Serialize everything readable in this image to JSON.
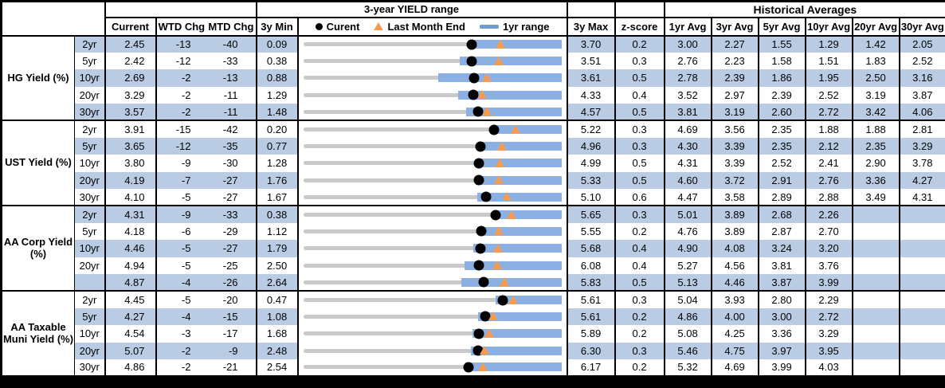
{
  "header": {
    "chart_group_title": "3-year YIELD range",
    "hist_group_title": "Historical Averages",
    "col_current": "Current",
    "col_wtd_chg": "WTD Chg",
    "col_mtd_chg": "MTD Chg",
    "col_3y_min": "3y Min",
    "col_3y_max": "3y Max",
    "col_z_score": "z-score",
    "avg_cols": [
      "1yr Avg",
      "3yr Avg",
      "5yr Avg",
      "10yr Avg",
      "20yr Avg",
      "30yr Avg"
    ],
    "legend": {
      "current_label": "Curent",
      "last_month_label": "Last Month End",
      "range_label": "1yr range"
    }
  },
  "colors": {
    "row_shade": "#b9cce4",
    "range_bar": "#8db0e2",
    "range_track": "#c9c9c9",
    "current_dot": "#000000",
    "last_month_marker": "#f79b52",
    "legend_dash": "#6d9ed3",
    "border": "#000000"
  },
  "chart_data": {
    "type": "table",
    "title": "3-year YIELD range",
    "note": "Each row shows a 3-year min-max track (gray), a 1yr range bar (blue), current yield (black dot) and last month end yield (orange triangle). last_month_end = current - mtd_chg/100. yr1_low/yr1_high estimated from bar positions.",
    "legend": [
      {
        "marker": "dot",
        "label": "Curent"
      },
      {
        "marker": "triangle",
        "label": "Last Month End"
      },
      {
        "marker": "bar",
        "label": "1yr range"
      }
    ],
    "groups": [
      {
        "label": "HG Yield (%)",
        "rows": [
          {
            "tenor": "2yr",
            "current": "2.45",
            "wtd_chg": "-13",
            "mtd_chg": "-40",
            "min_3y": "0.09",
            "max_3y": "3.70",
            "z_score": "0.2",
            "avgs": [
              "3.00",
              "2.27",
              "1.55",
              "1.29",
              "1.42",
              "2.05"
            ],
            "range": {
              "min": 0.09,
              "max": 3.7,
              "yr1_low": 2.4,
              "yr1_high": 3.7,
              "current": 2.45,
              "last_month_end": 2.85
            }
          },
          {
            "tenor": "5yr",
            "current": "2.42",
            "wtd_chg": "-12",
            "mtd_chg": "-33",
            "min_3y": "0.38",
            "max_3y": "3.51",
            "z_score": "0.3",
            "avgs": [
              "2.76",
              "2.23",
              "1.58",
              "1.51",
              "1.83",
              "2.52"
            ],
            "range": {
              "min": 0.38,
              "max": 3.51,
              "yr1_low": 2.28,
              "yr1_high": 3.51,
              "current": 2.42,
              "last_month_end": 2.75
            }
          },
          {
            "tenor": "10yr",
            "current": "2.69",
            "wtd_chg": "-2",
            "mtd_chg": "-13",
            "min_3y": "0.88",
            "max_3y": "3.61",
            "z_score": "0.5",
            "avgs": [
              "2.78",
              "2.39",
              "1.86",
              "1.95",
              "2.50",
              "3.16"
            ],
            "range": {
              "min": 0.88,
              "max": 3.61,
              "yr1_low": 2.31,
              "yr1_high": 3.61,
              "current": 2.69,
              "last_month_end": 2.82
            }
          },
          {
            "tenor": "20yr",
            "current": "3.29",
            "wtd_chg": "-2",
            "mtd_chg": "-11",
            "min_3y": "1.29",
            "max_3y": "4.33",
            "z_score": "0.4",
            "avgs": [
              "3.52",
              "2.97",
              "2.39",
              "2.52",
              "3.19",
              "3.87"
            ],
            "range": {
              "min": 1.29,
              "max": 4.33,
              "yr1_low": 3.11,
              "yr1_high": 4.33,
              "current": 3.29,
              "last_month_end": 3.4
            }
          },
          {
            "tenor": "30yr",
            "current": "3.57",
            "wtd_chg": "-2",
            "mtd_chg": "-11",
            "min_3y": "1.48",
            "max_3y": "4.57",
            "z_score": "0.5",
            "avgs": [
              "3.81",
              "3.19",
              "2.60",
              "2.72",
              "3.42",
              "4.06"
            ],
            "range": {
              "min": 1.48,
              "max": 4.57,
              "yr1_low": 3.43,
              "yr1_high": 4.57,
              "current": 3.57,
              "last_month_end": 3.68
            }
          }
        ]
      },
      {
        "label": "UST Yield (%)",
        "rows": [
          {
            "tenor": "2yr",
            "current": "3.91",
            "wtd_chg": "-15",
            "mtd_chg": "-42",
            "min_3y": "0.20",
            "max_3y": "5.22",
            "z_score": "0.3",
            "avgs": [
              "4.69",
              "3.56",
              "2.35",
              "1.88",
              "1.88",
              "2.81"
            ],
            "range": {
              "min": 0.2,
              "max": 5.22,
              "yr1_low": 3.88,
              "yr1_high": 5.22,
              "current": 3.91,
              "last_month_end": 4.33
            }
          },
          {
            "tenor": "5yr",
            "current": "3.65",
            "wtd_chg": "-12",
            "mtd_chg": "-35",
            "min_3y": "0.77",
            "max_3y": "4.96",
            "z_score": "0.3",
            "avgs": [
              "4.30",
              "3.39",
              "2.35",
              "2.12",
              "2.35",
              "3.29"
            ],
            "range": {
              "min": 0.77,
              "max": 4.96,
              "yr1_low": 3.62,
              "yr1_high": 4.96,
              "current": 3.65,
              "last_month_end": 4.0
            }
          },
          {
            "tenor": "10yr",
            "current": "3.80",
            "wtd_chg": "-9",
            "mtd_chg": "-30",
            "min_3y": "1.28",
            "max_3y": "4.99",
            "z_score": "0.5",
            "avgs": [
              "4.31",
              "3.39",
              "2.52",
              "2.41",
              "2.90",
              "3.78"
            ],
            "range": {
              "min": 1.28,
              "max": 4.99,
              "yr1_low": 3.78,
              "yr1_high": 4.99,
              "current": 3.8,
              "last_month_end": 4.1
            }
          },
          {
            "tenor": "20yr",
            "current": "4.19",
            "wtd_chg": "-7",
            "mtd_chg": "-27",
            "min_3y": "1.76",
            "max_3y": "5.33",
            "z_score": "0.5",
            "avgs": [
              "4.60",
              "3.72",
              "2.91",
              "2.76",
              "3.36",
              "4.27"
            ],
            "range": {
              "min": 1.76,
              "max": 5.33,
              "yr1_low": 4.14,
              "yr1_high": 5.33,
              "current": 4.19,
              "last_month_end": 4.46
            }
          },
          {
            "tenor": "30yr",
            "current": "4.10",
            "wtd_chg": "-5",
            "mtd_chg": "-27",
            "min_3y": "1.67",
            "max_3y": "5.10",
            "z_score": "0.6",
            "avgs": [
              "4.47",
              "3.58",
              "2.89",
              "2.88",
              "3.49",
              "4.31"
            ],
            "range": {
              "min": 1.67,
              "max": 5.1,
              "yr1_low": 3.98,
              "yr1_high": 5.1,
              "current": 4.1,
              "last_month_end": 4.37
            }
          }
        ]
      },
      {
        "label": "AA Corp Yield (%)",
        "rows": [
          {
            "tenor": "2yr",
            "current": "4.31",
            "wtd_chg": "-9",
            "mtd_chg": "-33",
            "min_3y": "0.38",
            "max_3y": "5.65",
            "z_score": "0.3",
            "avgs": [
              "5.01",
              "3.89",
              "2.68",
              "2.26",
              "",
              ""
            ],
            "range": {
              "min": 0.38,
              "max": 5.65,
              "yr1_low": 4.28,
              "yr1_high": 5.65,
              "current": 4.31,
              "last_month_end": 4.64
            }
          },
          {
            "tenor": "5yr",
            "current": "4.18",
            "wtd_chg": "-6",
            "mtd_chg": "-29",
            "min_3y": "1.12",
            "max_3y": "5.55",
            "z_score": "0.2",
            "avgs": [
              "4.76",
              "3.89",
              "2.87",
              "2.70",
              "",
              ""
            ],
            "range": {
              "min": 1.12,
              "max": 5.55,
              "yr1_low": 4.15,
              "yr1_high": 5.55,
              "current": 4.18,
              "last_month_end": 4.47
            }
          },
          {
            "tenor": "10yr",
            "current": "4.46",
            "wtd_chg": "-5",
            "mtd_chg": "-27",
            "min_3y": "1.79",
            "max_3y": "5.68",
            "z_score": "0.4",
            "avgs": [
              "4.90",
              "4.08",
              "3.24",
              "3.20",
              "",
              ""
            ],
            "range": {
              "min": 1.79,
              "max": 5.68,
              "yr1_low": 4.35,
              "yr1_high": 5.68,
              "current": 4.46,
              "last_month_end": 4.73
            }
          },
          {
            "tenor": "20yr",
            "current": "4.94",
            "wtd_chg": "-5",
            "mtd_chg": "-25",
            "min_3y": "2.50",
            "max_3y": "6.08",
            "z_score": "0.4",
            "avgs": [
              "5.27",
              "4.56",
              "3.81",
              "3.76",
              "",
              ""
            ],
            "range": {
              "min": 2.5,
              "max": 6.08,
              "yr1_low": 4.74,
              "yr1_high": 6.08,
              "current": 4.94,
              "last_month_end": 5.19
            }
          },
          {
            "tenor": "",
            "current": "4.87",
            "wtd_chg": "-4",
            "mtd_chg": "-26",
            "min_3y": "2.64",
            "max_3y": "5.83",
            "z_score": "0.5",
            "avgs": [
              "5.13",
              "4.46",
              "3.87",
              "3.99",
              "",
              ""
            ],
            "range": {
              "min": 2.64,
              "max": 5.83,
              "yr1_low": 4.59,
              "yr1_high": 5.83,
              "current": 4.87,
              "last_month_end": 5.13
            }
          }
        ]
      },
      {
        "label": "AA Taxable Muni Yield (%)",
        "rows": [
          {
            "tenor": "2yr",
            "current": "4.45",
            "wtd_chg": "-5",
            "mtd_chg": "-20",
            "min_3y": "0.47",
            "max_3y": "5.61",
            "z_score": "0.3",
            "avgs": [
              "5.04",
              "3.93",
              "2.80",
              "2.29",
              "",
              ""
            ],
            "range": {
              "min": 0.47,
              "max": 5.61,
              "yr1_low": 4.3,
              "yr1_high": 5.61,
              "current": 4.45,
              "last_month_end": 4.65
            }
          },
          {
            "tenor": "5yr",
            "current": "4.27",
            "wtd_chg": "-4",
            "mtd_chg": "-15",
            "min_3y": "1.08",
            "max_3y": "5.61",
            "z_score": "0.2",
            "avgs": [
              "4.86",
              "4.00",
              "3.00",
              "2.72",
              "",
              ""
            ],
            "range": {
              "min": 1.08,
              "max": 5.61,
              "yr1_low": 4.15,
              "yr1_high": 5.61,
              "current": 4.27,
              "last_month_end": 4.42
            }
          },
          {
            "tenor": "10yr",
            "current": "4.54",
            "wtd_chg": "-3",
            "mtd_chg": "-17",
            "min_3y": "1.68",
            "max_3y": "5.89",
            "z_score": "0.2",
            "avgs": [
              "5.08",
              "4.25",
              "3.36",
              "3.29",
              "",
              ""
            ],
            "range": {
              "min": 1.68,
              "max": 5.89,
              "yr1_low": 4.44,
              "yr1_high": 5.89,
              "current": 4.54,
              "last_month_end": 4.71
            }
          },
          {
            "tenor": "20yr",
            "current": "5.07",
            "wtd_chg": "-2",
            "mtd_chg": "-9",
            "min_3y": "2.48",
            "max_3y": "6.30",
            "z_score": "0.3",
            "avgs": [
              "5.46",
              "4.75",
              "3.97",
              "3.95",
              "",
              ""
            ],
            "range": {
              "min": 2.48,
              "max": 6.3,
              "yr1_low": 4.96,
              "yr1_high": 6.3,
              "current": 5.07,
              "last_month_end": 5.16
            }
          },
          {
            "tenor": "30yr",
            "current": "4.86",
            "wtd_chg": "-2",
            "mtd_chg": "-21",
            "min_3y": "2.54",
            "max_3y": "6.17",
            "z_score": "0.2",
            "avgs": [
              "5.32",
              "4.69",
              "3.99",
              "4.03",
              "",
              ""
            ],
            "range": {
              "min": 2.54,
              "max": 6.17,
              "yr1_low": 4.82,
              "yr1_high": 6.17,
              "current": 4.86,
              "last_month_end": 5.07
            }
          }
        ]
      }
    ]
  }
}
